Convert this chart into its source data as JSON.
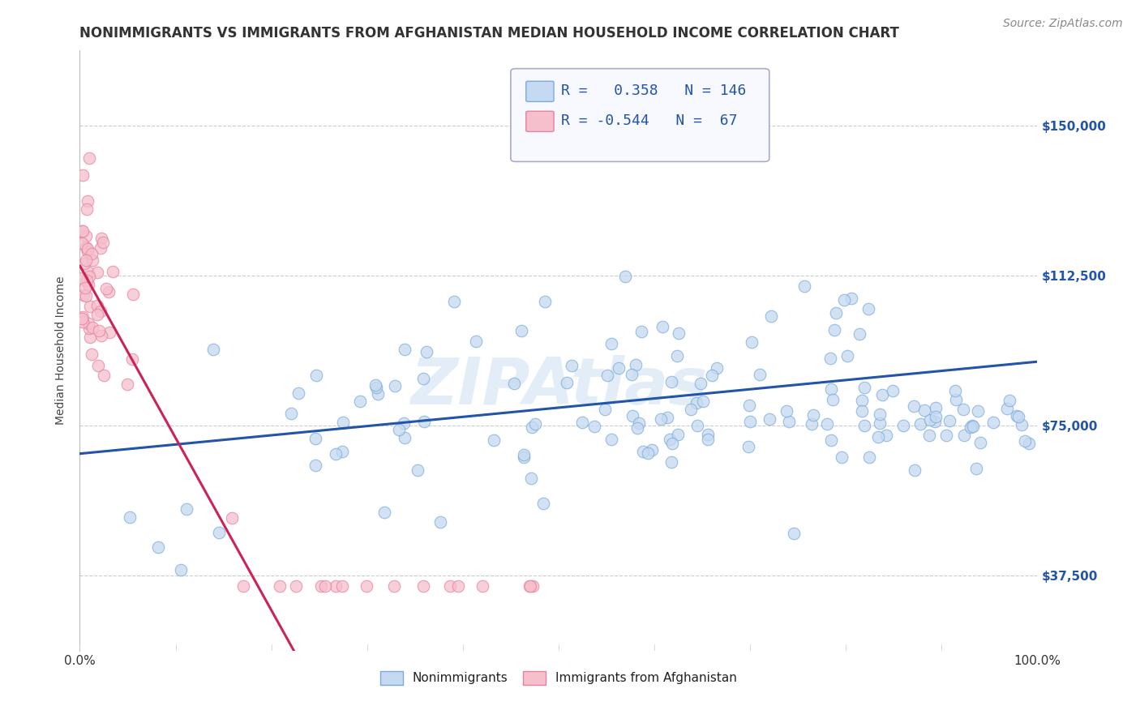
{
  "title": "NONIMMIGRANTS VS IMMIGRANTS FROM AFGHANISTAN MEDIAN HOUSEHOLD INCOME CORRELATION CHART",
  "source_text": "Source: ZipAtlas.com",
  "ylabel": "Median Household Income",
  "xlim": [
    0,
    1
  ],
  "ylim": [
    18750,
    168750
  ],
  "yticks": [
    37500,
    75000,
    112500,
    150000
  ],
  "ytick_labels": [
    "$37,500",
    "$75,000",
    "$112,500",
    "$150,000"
  ],
  "xtick_labels": [
    "0.0%",
    "100.0%"
  ],
  "bg_color": "#ffffff",
  "grid_color": "#cccccc",
  "blue_dot_face": "#c5d9f0",
  "blue_dot_edge": "#7aabdc",
  "pink_dot_face": "#f5c0cc",
  "pink_dot_edge": "#e880a0",
  "line_blue": "#2255aa",
  "line_pink": "#cc2255",
  "watermark": "ZIPAtlas",
  "legend_R1": "0.358",
  "legend_N1": "146",
  "legend_R2": "-0.544",
  "legend_N2": "67",
  "label1": "Nonimmigrants",
  "label2": "Immigrants from Afghanistan",
  "title_fontsize": 12,
  "axis_label_fontsize": 10,
  "tick_fontsize": 11,
  "legend_fontsize": 13,
  "source_fontsize": 10,
  "blue_line_x0": 0.0,
  "blue_line_y0": 68000,
  "blue_line_x1": 1.0,
  "blue_line_y1": 91000,
  "pink_line_x0": 0.0,
  "pink_line_y0": 115000,
  "pink_line_x1": 0.22,
  "pink_line_y1": 18750
}
